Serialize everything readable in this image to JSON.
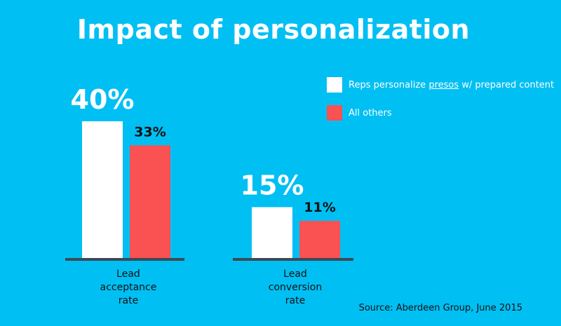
{
  "chart_data": {
    "type": "bar",
    "title": "Impact of personalization",
    "categories": [
      "Lead acceptance rate",
      "Lead conversion rate"
    ],
    "category_lines": [
      [
        "Lead",
        "acceptance",
        "rate"
      ],
      [
        "Lead",
        "conversion",
        "rate"
      ]
    ],
    "series": [
      {
        "name": "Reps personalize presos w/ prepared content",
        "values": [
          40,
          15
        ],
        "labels": [
          "40%",
          "15%"
        ],
        "color": "#ffffff"
      },
      {
        "name": "All others",
        "values": [
          33,
          11
        ],
        "labels": [
          "33%",
          "11%"
        ],
        "color": "#fa5152"
      }
    ],
    "ylim": [
      0,
      40
    ],
    "grid": false,
    "legend_position": "top-right",
    "baseline_color": "#3d4a55"
  },
  "legend_parts": [
    {
      "before": "Reps personalize ",
      "underlined": "presos",
      "after": " w/ prepared content"
    },
    {
      "before": "All others",
      "underlined": "",
      "after": ""
    }
  ],
  "source": "Source: Aberdeen Group, June 2015"
}
